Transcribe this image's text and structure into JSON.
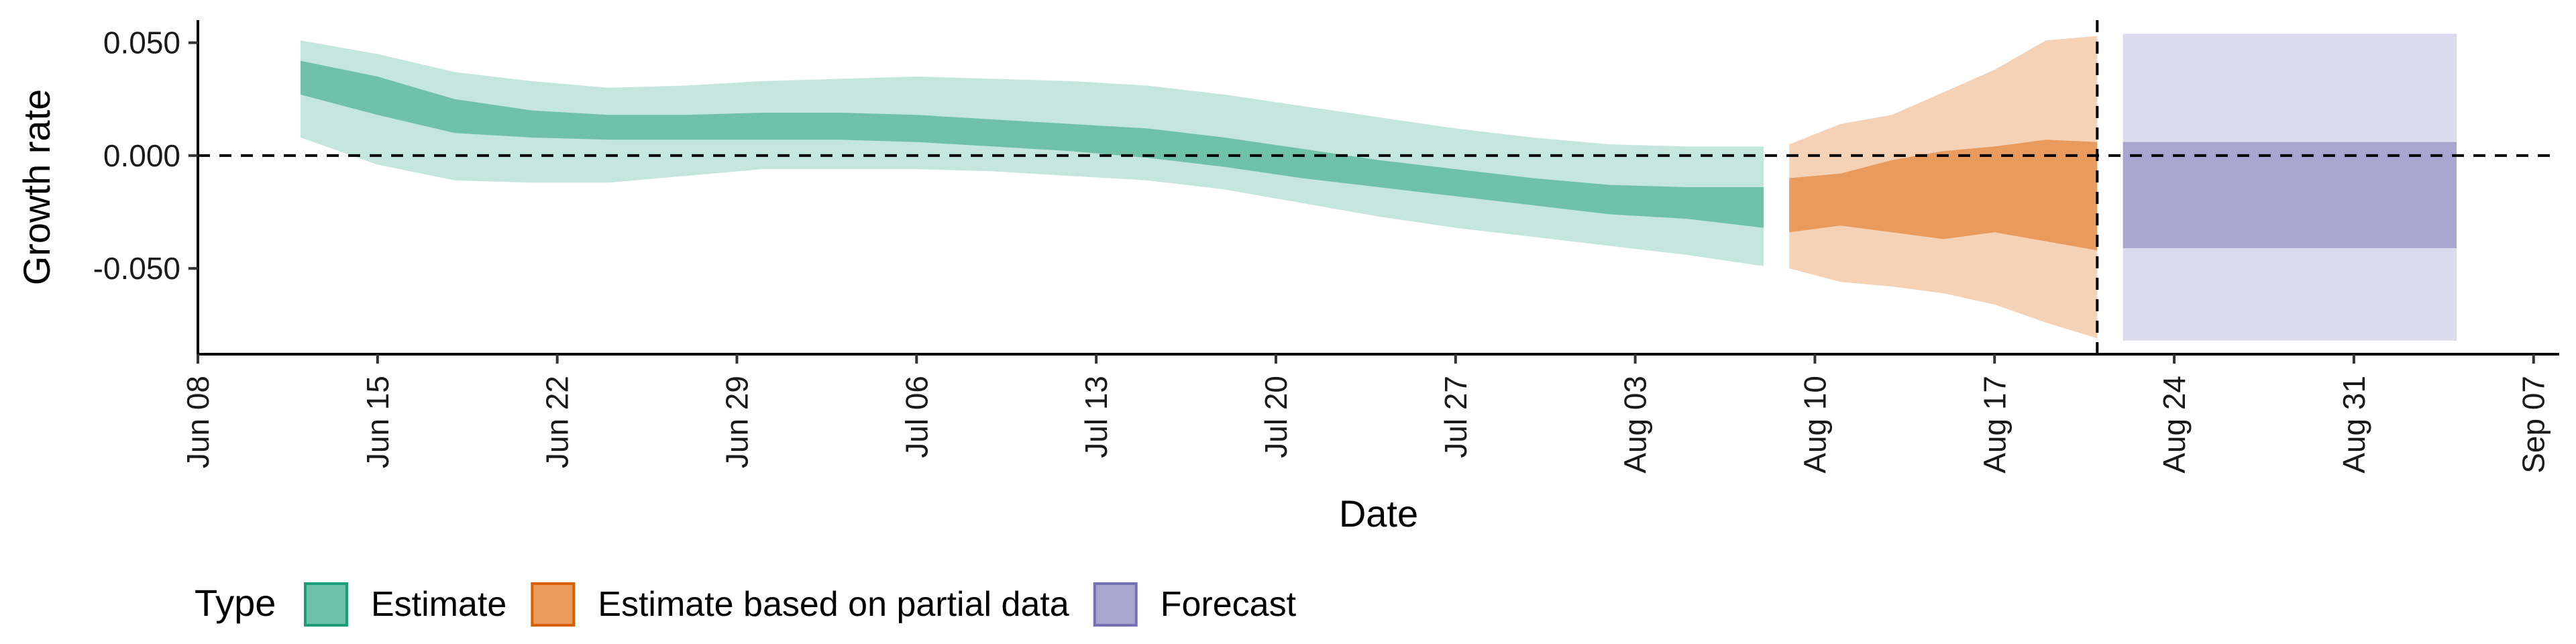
{
  "chart_data": {
    "type": "area",
    "xlabel": "Date",
    "ylabel": "Growth rate",
    "x_ticks": [
      "Jun 08",
      "Jun 15",
      "Jun 22",
      "Jun 29",
      "Jul 06",
      "Jul 13",
      "Jul 20",
      "Jul 27",
      "Aug 03",
      "Aug 10",
      "Aug 17",
      "Aug 24",
      "Aug 31",
      "Sep 07"
    ],
    "x_range": [
      "2020-06-08",
      "2020-09-08"
    ],
    "y_ticks": [
      "0.050",
      "0.000",
      "-0.050"
    ],
    "y_tick_values": [
      0.05,
      0.0,
      -0.05
    ],
    "ylim": [
      -0.088,
      0.06
    ],
    "reference_hline": 0.0,
    "reference_vline": "2020-08-21",
    "legend": {
      "title": "Type",
      "position": "bottom",
      "entries": [
        {
          "label": "Estimate",
          "fill": "#6fc2a7",
          "stroke": "#1b9e77"
        },
        {
          "label": "Estimate based on partial data",
          "fill": "#e99a5d",
          "stroke": "#d95f02"
        },
        {
          "label": "Forecast",
          "fill": "#a9a5d1",
          "stroke": "#7570b3"
        }
      ]
    },
    "series": [
      {
        "type_label": "Estimate",
        "color": "#6fc2a7",
        "light_color": "#c4e6dc",
        "dates": [
          "2020-06-12",
          "2020-06-15",
          "2020-06-18",
          "2020-06-21",
          "2020-06-24",
          "2020-06-27",
          "2020-06-30",
          "2020-07-03",
          "2020-07-06",
          "2020-07-09",
          "2020-07-12",
          "2020-07-15",
          "2020-07-18",
          "2020-07-21",
          "2020-07-24",
          "2020-07-27",
          "2020-07-30",
          "2020-08-02",
          "2020-08-05",
          "2020-08-08"
        ],
        "outer_upper": [
          0.051,
          0.045,
          0.037,
          0.033,
          0.03,
          0.031,
          0.033,
          0.034,
          0.035,
          0.034,
          0.033,
          0.031,
          0.027,
          0.022,
          0.017,
          0.012,
          0.008,
          0.005,
          0.004,
          0.004
        ],
        "inner_upper": [
          0.042,
          0.035,
          0.025,
          0.02,
          0.018,
          0.018,
          0.019,
          0.019,
          0.018,
          0.016,
          0.014,
          0.012,
          0.008,
          0.003,
          -0.002,
          -0.006,
          -0.01,
          -0.013,
          -0.014,
          -0.014
        ],
        "inner_lower": [
          0.027,
          0.018,
          0.01,
          0.008,
          0.007,
          0.007,
          0.007,
          0.007,
          0.006,
          0.004,
          0.002,
          -0.001,
          -0.005,
          -0.01,
          -0.014,
          -0.018,
          -0.022,
          -0.026,
          -0.028,
          -0.032
        ],
        "outer_lower": [
          0.008,
          -0.004,
          -0.011,
          -0.012,
          -0.012,
          -0.009,
          -0.006,
          -0.006,
          -0.006,
          -0.007,
          -0.009,
          -0.011,
          -0.015,
          -0.021,
          -0.027,
          -0.032,
          -0.036,
          -0.04,
          -0.044,
          -0.049
        ]
      },
      {
        "type_label": "Estimate based on partial data",
        "color": "#e99a5d",
        "light_color": "#f5d2b6",
        "dates": [
          "2020-08-09",
          "2020-08-11",
          "2020-08-13",
          "2020-08-15",
          "2020-08-17",
          "2020-08-19",
          "2020-08-21"
        ],
        "outer_upper": [
          0.005,
          0.014,
          0.018,
          0.028,
          0.038,
          0.051,
          0.053
        ],
        "inner_upper": [
          -0.01,
          -0.008,
          -0.002,
          0.002,
          0.004,
          0.007,
          0.006
        ],
        "inner_lower": [
          -0.034,
          -0.031,
          -0.034,
          -0.037,
          -0.034,
          -0.038,
          -0.042
        ],
        "outer_lower": [
          -0.05,
          -0.056,
          -0.058,
          -0.061,
          -0.066,
          -0.074,
          -0.081
        ]
      },
      {
        "type_label": "Forecast",
        "color": "#a9a5d1",
        "light_color": "#dcdaed",
        "dates": [
          "2020-08-22",
          "2020-09-04"
        ],
        "outer_upper": [
          0.054,
          0.054
        ],
        "inner_upper": [
          0.006,
          0.006
        ],
        "inner_lower": [
          -0.041,
          -0.041
        ],
        "outer_lower": [
          -0.082,
          -0.082
        ]
      }
    ]
  }
}
